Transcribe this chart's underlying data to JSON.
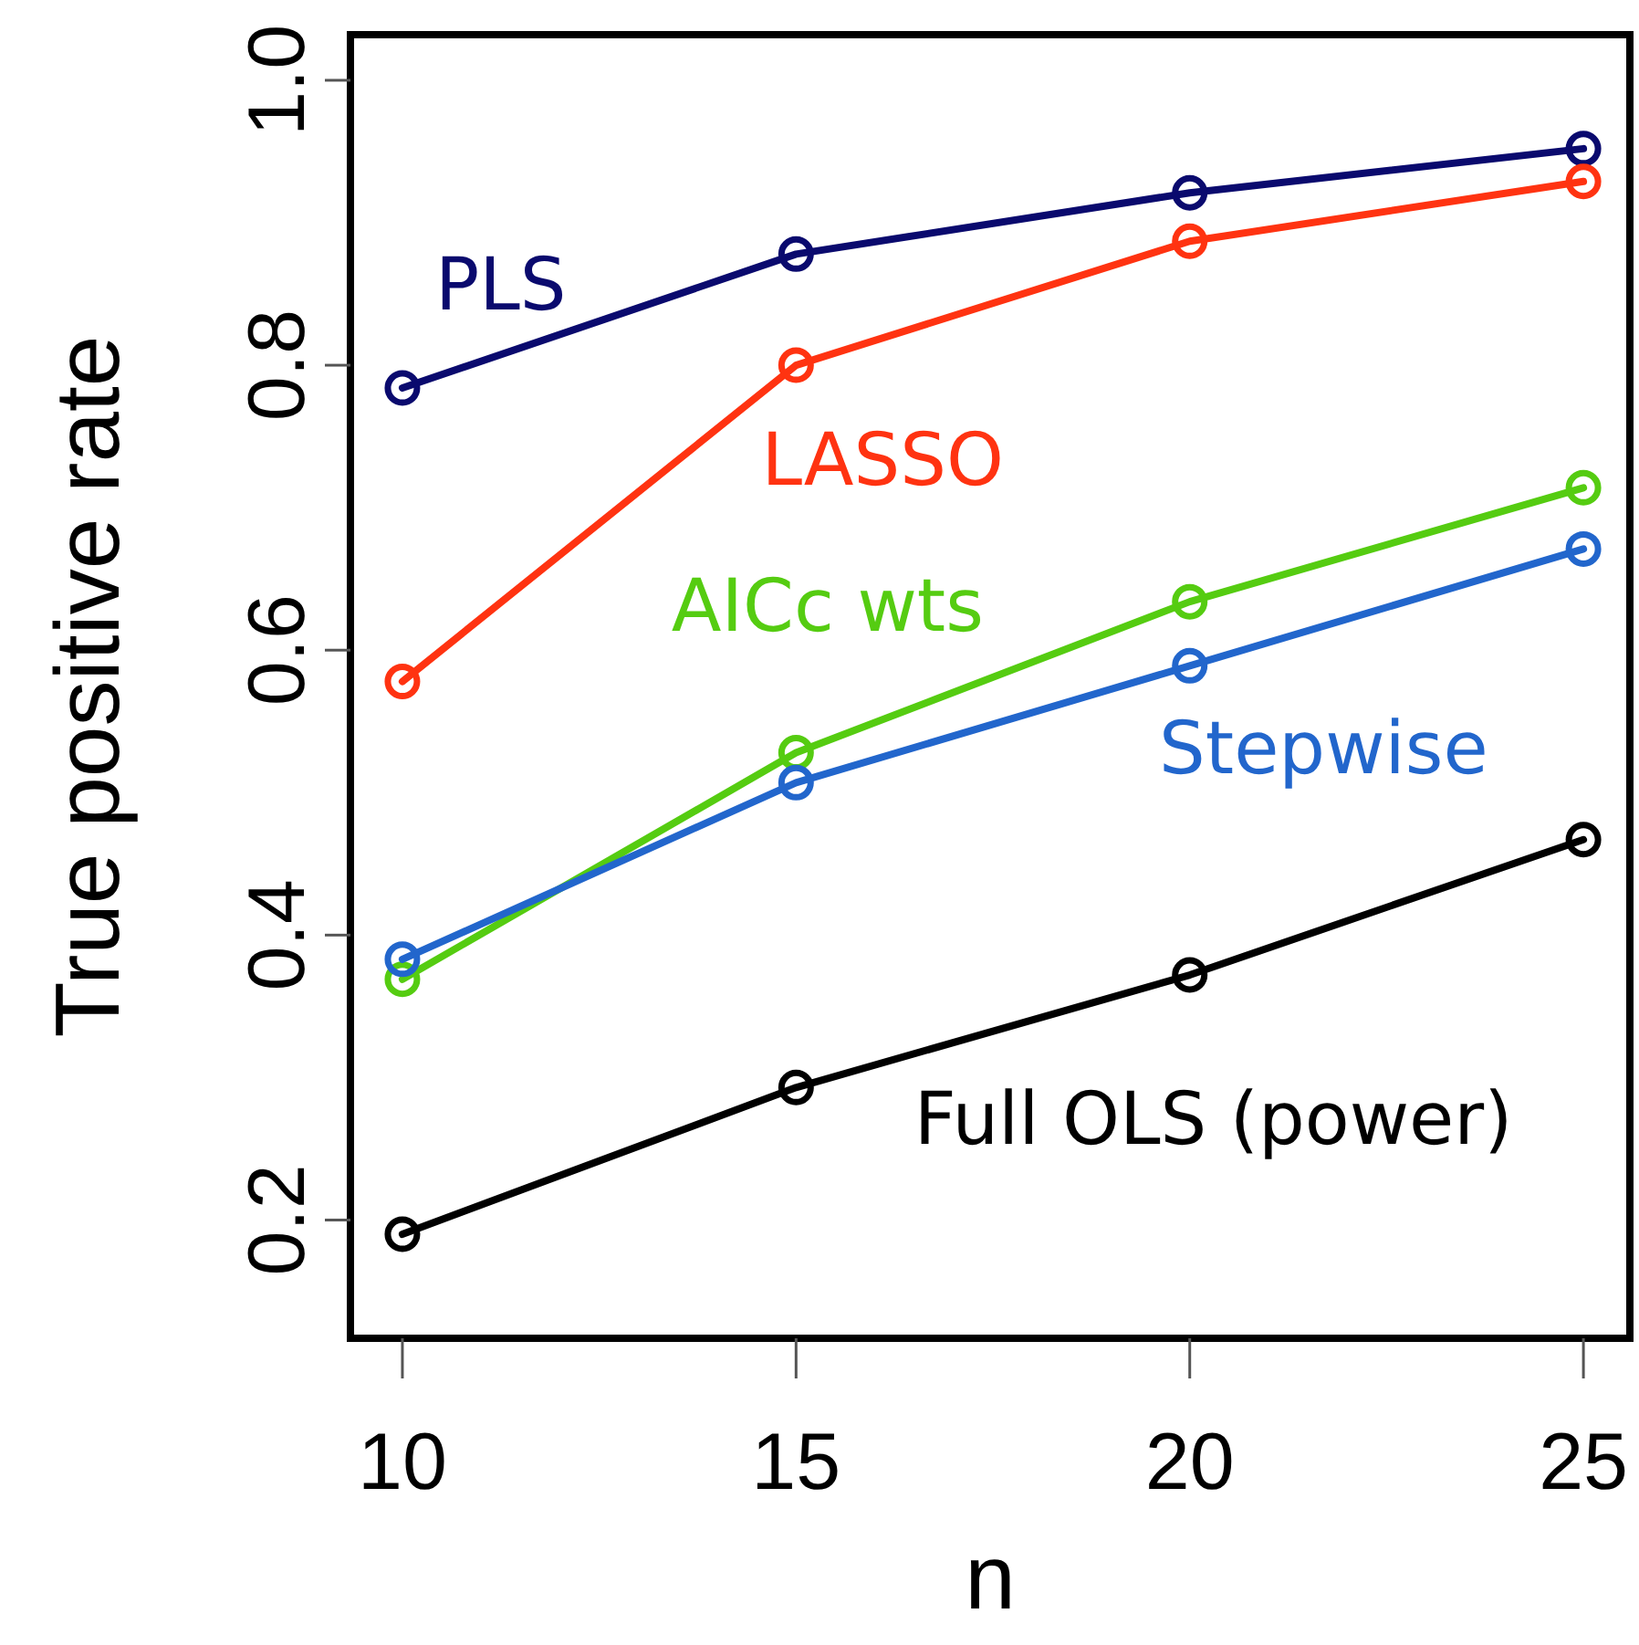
{
  "chart_data": {
    "type": "line",
    "xlabel": "n",
    "ylabel": "True positive rate",
    "x": [
      10,
      15,
      20,
      25
    ],
    "xlim": [
      9.34,
      25.59
    ],
    "ylim": [
      0.117,
      1.032
    ],
    "xticks": [
      10,
      15,
      20,
      25
    ],
    "yticks": [
      {
        "value": 0.2,
        "label": "0.2"
      },
      {
        "value": 0.4,
        "label": "0.4"
      },
      {
        "value": 0.6,
        "label": "0.6"
      },
      {
        "value": 0.8,
        "label": "0.8"
      },
      {
        "value": 1.0,
        "label": "1.0"
      }
    ],
    "marker": "circle",
    "grid": false,
    "legend": false,
    "series": [
      {
        "name": "PLS",
        "color": "#0a0a6e",
        "values": [
          0.784,
          0.878,
          0.921,
          0.952
        ]
      },
      {
        "name": "LASSO",
        "color": "#ff3311",
        "values": [
          0.578,
          0.8,
          0.887,
          0.929
        ]
      },
      {
        "name": "AICc wts",
        "color": "#55cc11",
        "values": [
          0.369,
          0.528,
          0.634,
          0.714
        ]
      },
      {
        "name": "Stepwise",
        "color": "#2266cc",
        "values": [
          0.383,
          0.507,
          0.589,
          0.671
        ]
      },
      {
        "name": "Full OLS (power)",
        "color": "#000000",
        "values": [
          0.19,
          0.293,
          0.372,
          0.467
        ]
      }
    ]
  }
}
